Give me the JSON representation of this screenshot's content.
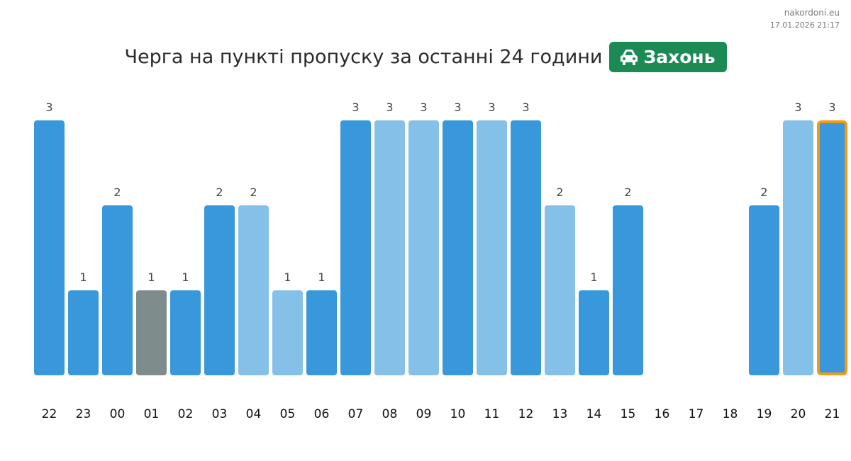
{
  "header": {
    "site": "nakordoni.eu",
    "timestamp": "17.01.2026 21:17",
    "title": "Черга на пункті пропуску за останні 24 години",
    "badge_label": "Захонь",
    "badge_icon": "car-icon",
    "badge_color": "#1c8a53"
  },
  "chart_data": {
    "type": "bar",
    "title": "Черга на пункті пропуску за останні 24 години",
    "xlabel": "",
    "ylabel": "",
    "ylim": [
      0,
      3
    ],
    "grid": false,
    "legend": "none",
    "categories": [
      "22",
      "23",
      "00",
      "01",
      "02",
      "03",
      "04",
      "05",
      "06",
      "07",
      "08",
      "09",
      "10",
      "11",
      "12",
      "13",
      "14",
      "15",
      "16",
      "17",
      "18",
      "19",
      "20",
      "21"
    ],
    "values": [
      3,
      1,
      2,
      1,
      1,
      2,
      2,
      1,
      1,
      3,
      3,
      3,
      3,
      3,
      3,
      2,
      1,
      2,
      null,
      null,
      null,
      2,
      3,
      3
    ],
    "bar_styles": [
      "dark",
      "dark",
      "dark",
      "grey",
      "dark",
      "dark",
      "light",
      "light",
      "dark",
      "dark",
      "light",
      "light",
      "dark",
      "light",
      "dark",
      "light",
      "dark",
      "dark",
      null,
      null,
      null,
      "dark",
      "light",
      "current"
    ],
    "colors": {
      "dark": "#3898db",
      "light": "#85c0e9",
      "grey": "#7f8c8c",
      "current_outline": "#f29a13"
    }
  }
}
